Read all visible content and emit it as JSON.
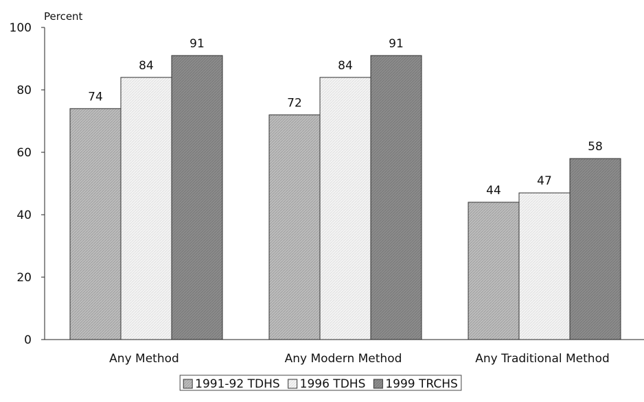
{
  "chart_data": {
    "type": "bar",
    "y_unit_label": "Percent",
    "categories": [
      "Any Method",
      "Any Modern Method",
      "Any Traditional Method"
    ],
    "series": [
      {
        "name": "1991-92 TDHS",
        "values": [
          74,
          72,
          44
        ],
        "color": "#bdbdbd"
      },
      {
        "name": "1996 TDHS",
        "values": [
          84,
          84,
          47
        ],
        "color": "#f2f2f2"
      },
      {
        "name": "1999 TRCHS",
        "values": [
          91,
          91,
          58
        ],
        "color": "#8c8c8c"
      }
    ],
    "ylim": [
      0,
      100
    ],
    "yticks": [
      0,
      20,
      40,
      60,
      80,
      100
    ],
    "grid": false,
    "legend_position": "bottom-center",
    "data_labels": true
  }
}
